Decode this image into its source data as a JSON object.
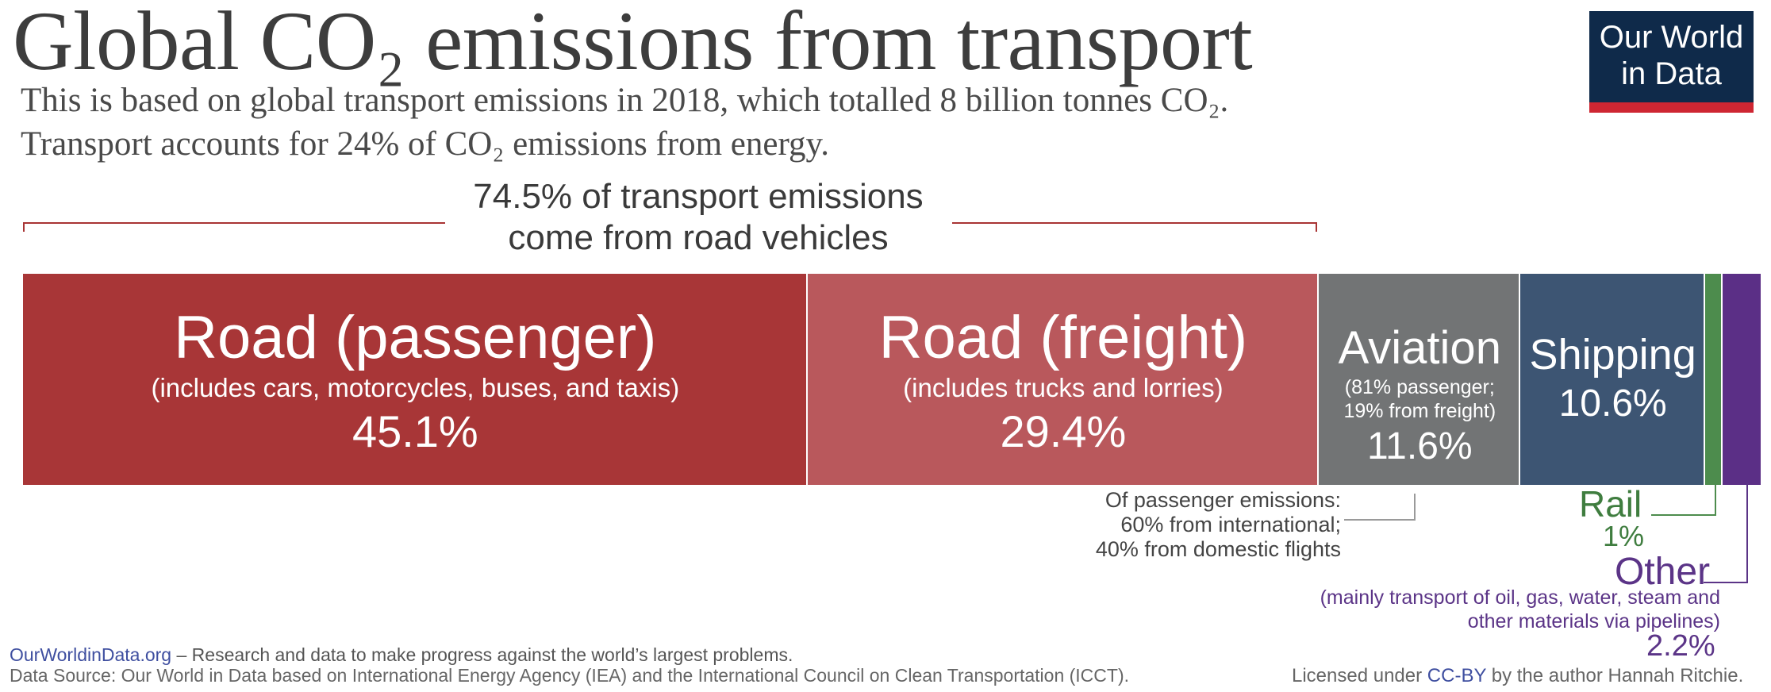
{
  "header": {
    "title": "Global CO₂ emissions from transport",
    "subtitle_line1": "This is based on global transport emissions in 2018, which totalled 8 billion tonnes CO₂.",
    "subtitle_line2": "Transport accounts for 24% of CO₂ emissions from energy."
  },
  "logo": {
    "line1": "Our World",
    "line2": "in Data",
    "bg_color": "#0f2a4a",
    "accent_color": "#ce2632"
  },
  "annotations": {
    "road_line1": "74.5% of transport emissions",
    "road_line2": "come from road vehicles",
    "aviation_note": [
      "Of passenger emissions:",
      "60% from international;",
      "40% from domestic flights"
    ]
  },
  "chart_data": {
    "type": "bar",
    "orientation": "horizontal-stacked",
    "title": "Global CO₂ emissions from transport",
    "unit": "%",
    "total": 100,
    "segments": [
      {
        "id": "rp",
        "name": "Road (passenger)",
        "description": "(includes cars, motorcycles, buses, and taxis)",
        "value": 45.1,
        "label": "45.1%",
        "color": "#a83637"
      },
      {
        "id": "rf",
        "name": "Road (freight)",
        "description": "(includes trucks and lorries)",
        "value": 29.4,
        "label": "29.4%",
        "color": "#b9585c"
      },
      {
        "id": "av",
        "name": "Aviation",
        "description_line1": "(81% passenger;",
        "description_line2": "19% from freight)",
        "value": 11.6,
        "label": "11.6%",
        "color": "#727475"
      },
      {
        "id": "sh",
        "name": "Shipping",
        "value": 10.6,
        "label": "10.6%",
        "color": "#3d5573"
      },
      {
        "id": "ra",
        "name": "Rail",
        "value": 1,
        "label": "1%",
        "color": "#4d8c4d"
      },
      {
        "id": "ot",
        "name": "Other",
        "description": [
          "(mainly transport of oil, gas, water, steam and",
          "other materials via pipelines)"
        ],
        "value": 2.2,
        "label": "2.2%",
        "color": "#5b2f86"
      }
    ]
  },
  "footer": {
    "site": "OurWorldinData.org",
    "tagline": " – Research and data to make progress against the world’s largest problems.",
    "source": "Data Source: Our World in Data based on International Energy Agency (IEA) and the International Council on Clean Transportation (ICCT).",
    "license_prefix": "Licensed under ",
    "license_link": "CC-BY",
    "license_suffix": " by the author Hannah Ritchie."
  }
}
